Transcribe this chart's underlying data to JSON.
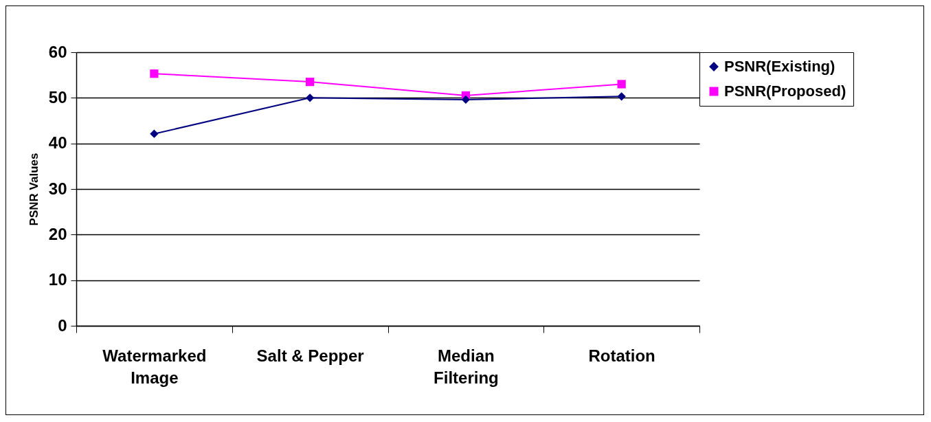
{
  "chart_data": {
    "type": "line",
    "ylabel": "PSNR Values",
    "categories": [
      "Watermarked Image",
      "Salt & Pepper",
      "Median Filtering",
      "Rotation"
    ],
    "series": [
      {
        "name": "PSNR(Existing)",
        "color": "#000080",
        "marker": "diamond",
        "values": [
          42.1,
          50.0,
          49.6,
          50.3
        ]
      },
      {
        "name": "PSNR(Proposed)",
        "color": "#ff00ff",
        "marker": "square",
        "values": [
          55.3,
          53.5,
          50.5,
          53.0
        ]
      }
    ],
    "ylim": [
      0,
      60
    ],
    "yticks": [
      0,
      10,
      20,
      30,
      40,
      50,
      60
    ],
    "grid": "y",
    "legend": "right"
  }
}
